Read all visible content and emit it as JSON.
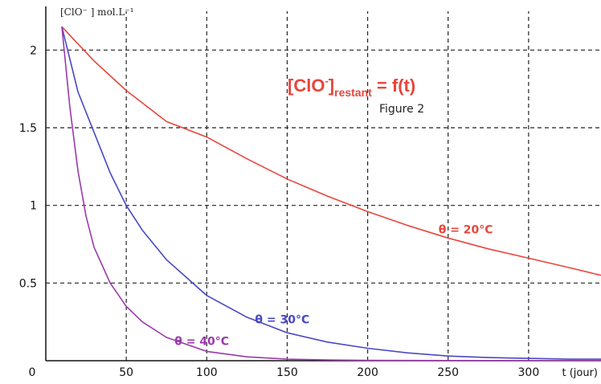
{
  "chart_data": {
    "type": "line",
    "title": {
      "main": "[ClO",
      "main_sup": "-",
      "main_close": "]",
      "sub": "restant",
      "rest": " = f(t)"
    },
    "figure_label": "Figure 2",
    "ylabel": "[ClO⁻ ] mol.L⁻¹",
    "xlabel": "t (jour)",
    "xlim": [
      0,
      345
    ],
    "ylim": [
      0,
      2.25
    ],
    "x_origin_label": "0",
    "x_ticks": [
      50,
      100,
      150,
      200,
      250,
      300
    ],
    "x_tick_labels": [
      "50",
      "100",
      "150",
      "200",
      "250",
      "300"
    ],
    "y_ticks": [
      0.5,
      1,
      1.5,
      2
    ],
    "y_tick_labels": [
      "0.5",
      "1",
      "1.5",
      "2"
    ],
    "x_grid": [
      50,
      100,
      150,
      200,
      250,
      300
    ],
    "y_grid": [
      0.5,
      1,
      1.5,
      2
    ],
    "grid": true,
    "series": [
      {
        "name": "θ = 20°C",
        "color": "#e8463c",
        "x": [
          10,
          30,
          50,
          75,
          100,
          125,
          150,
          175,
          200,
          225,
          250,
          275,
          300,
          325,
          345
        ],
        "values": [
          2.15,
          1.93,
          1.74,
          1.54,
          1.44,
          1.3,
          1.17,
          1.06,
          0.96,
          0.87,
          0.79,
          0.72,
          0.66,
          0.6,
          0.55
        ]
      },
      {
        "name": "θ = 30°C",
        "color": "#4848c4",
        "x": [
          10,
          20,
          30,
          40,
          50,
          60,
          75,
          100,
          125,
          150,
          175,
          200,
          225,
          250,
          275,
          300,
          325,
          345
        ],
        "values": [
          2.15,
          1.73,
          1.47,
          1.21,
          1.0,
          0.84,
          0.65,
          0.42,
          0.28,
          0.18,
          0.12,
          0.08,
          0.05,
          0.03,
          0.02,
          0.015,
          0.01,
          0.01
        ]
      },
      {
        "name": "θ = 40°C",
        "color": "#9a3aaa",
        "x": [
          10,
          15,
          20,
          25,
          30,
          40,
          50,
          60,
          75,
          100,
          125,
          150,
          175,
          200,
          250,
          300,
          345
        ],
        "values": [
          2.15,
          1.63,
          1.22,
          0.93,
          0.73,
          0.5,
          0.35,
          0.25,
          0.15,
          0.06,
          0.025,
          0.01,
          0.005,
          0.002,
          0.001,
          0.0,
          0.0
        ]
      }
    ],
    "series_labels": [
      {
        "text": "θ = 20°C",
        "color": "#e8463c",
        "x": 244,
        "y": 0.82
      },
      {
        "text": "θ = 30°C",
        "color": "#4848c4",
        "x": 130,
        "y": 0.24
      },
      {
        "text": "θ = 40°C",
        "color": "#9a3aaa",
        "x": 80,
        "y": 0.1
      }
    ],
    "title_color": "#e8463c"
  }
}
